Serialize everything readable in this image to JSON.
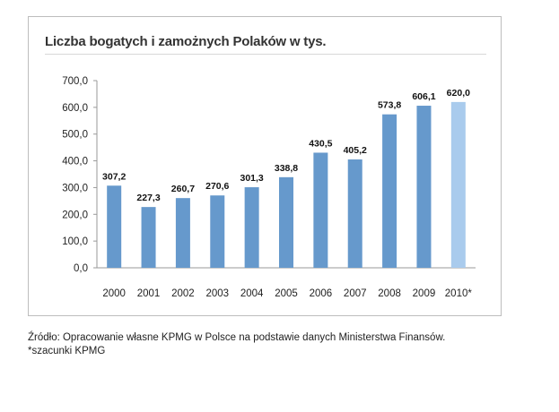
{
  "chart_data": {
    "type": "bar",
    "title": "Liczba bogatych i zamożnych Polaków w tys.",
    "categories": [
      "2000",
      "2001",
      "2002",
      "2003",
      "2004",
      "2005",
      "2006",
      "2007",
      "2008",
      "2009",
      "2010*"
    ],
    "values": [
      307.2,
      227.3,
      260.7,
      270.6,
      301.3,
      338.8,
      430.5,
      405.2,
      573.8,
      606.1,
      620.0
    ],
    "value_labels": [
      "307,2",
      "227,3",
      "260,7",
      "270,6",
      "301,3",
      "338,8",
      "430,5",
      "405,2",
      "573,8",
      "606,1",
      "620,0"
    ],
    "ylim": [
      0,
      700
    ],
    "yticks": [
      "0,0",
      "100,0",
      "200,0",
      "300,0",
      "400,0",
      "500,0",
      "600,0",
      "700,0"
    ],
    "grid": false,
    "colors": {
      "bar": "#6699cc",
      "bar_estimate": "#a9cbed"
    },
    "estimate_index": 10
  },
  "footer": {
    "source": "Źródło: Opracowanie własne KPMG w Polsce na podstawie danych Ministerstwa Finansów.",
    "note": "*szacunki KPMG"
  }
}
